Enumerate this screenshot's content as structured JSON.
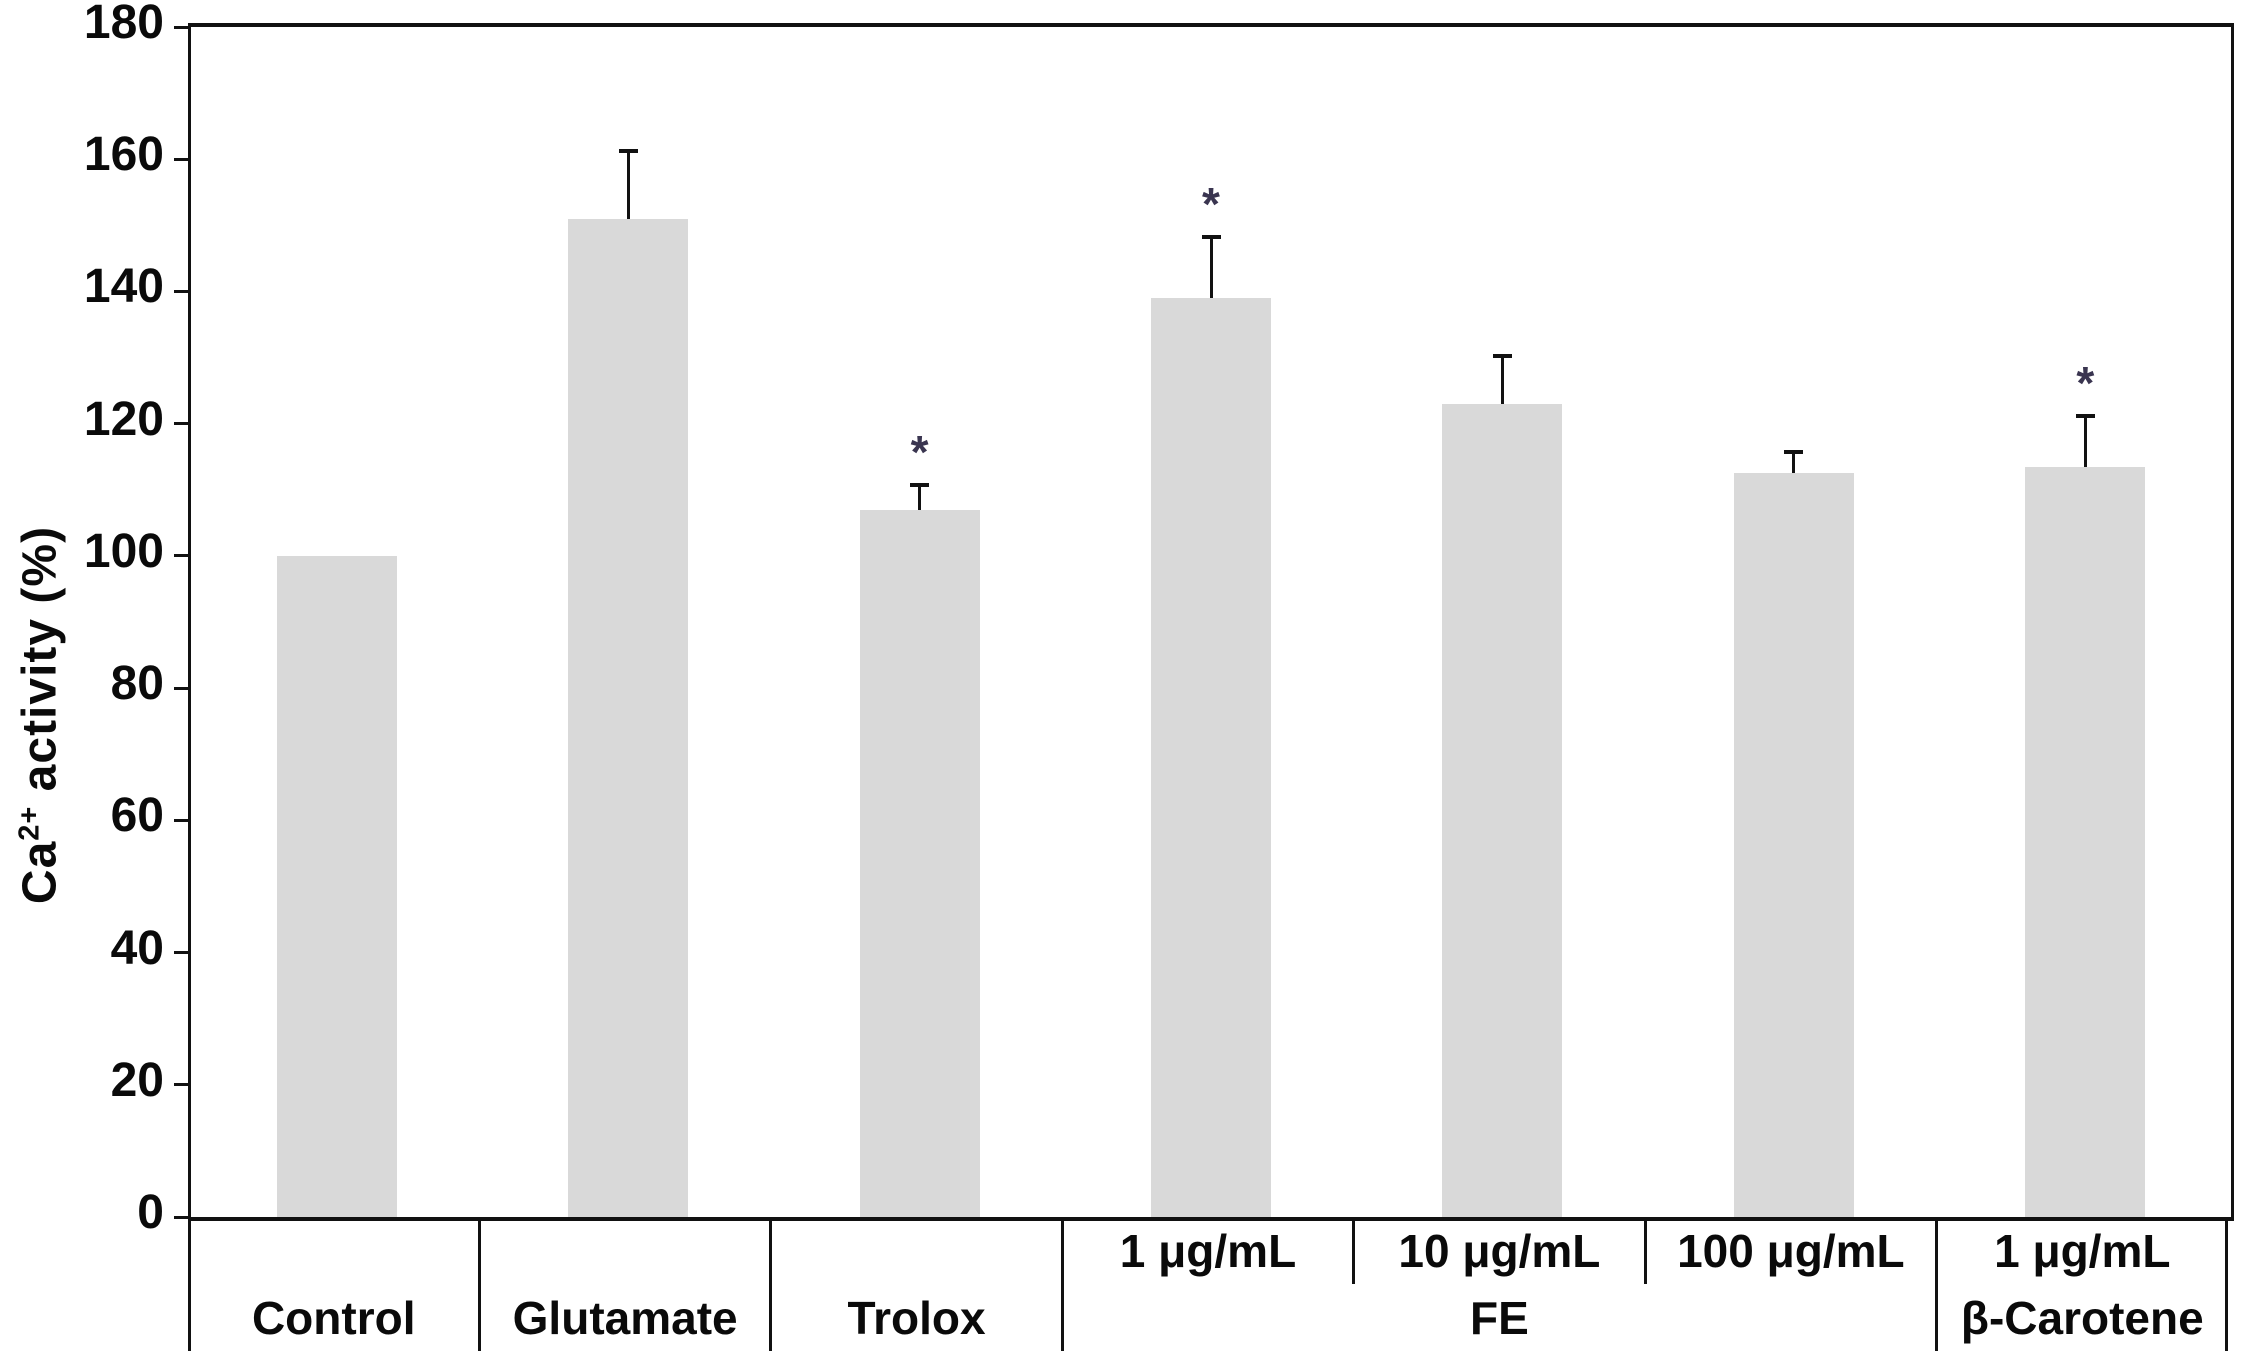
{
  "figure": {
    "ylabel_prefix": "Ca",
    "ylabel_sup": "2+",
    "ylabel_suffix": " activity (%)"
  },
  "chart_data": {
    "type": "bar",
    "title": "",
    "xlabel": "",
    "ylabel": "Ca2+ activity (%)",
    "ylim": [
      0,
      180
    ],
    "ytick_step": 20,
    "ytick_labels": [
      "0",
      "20",
      "40",
      "60",
      "80",
      "100",
      "120",
      "140",
      "160",
      "180"
    ],
    "grid": false,
    "legend": false,
    "bar_color": "#d9d9d9",
    "axis_color": "#111111",
    "error_bar_color": "#111111",
    "significance_marker": "*",
    "significance_color": "#3a3550",
    "categories": [
      "Control",
      "Glutamate",
      "Trolox",
      "FE 1 μg/mL",
      "FE 10 μg/mL",
      "FE 100 μg/mL",
      "β-Carotene 1 μg/mL"
    ],
    "values": [
      100,
      151,
      107,
      139,
      123,
      112.5,
      113.5
    ],
    "errors_plus": [
      0,
      10.5,
      4,
      9.5,
      7.5,
      3.5,
      8
    ],
    "significant": [
      false,
      false,
      true,
      true,
      false,
      false,
      true
    ],
    "x_axis_groups": [
      {
        "label": "Control",
        "dose_labels": [
          ""
        ]
      },
      {
        "label": "Glutamate",
        "dose_labels": [
          ""
        ]
      },
      {
        "label": "Trolox",
        "dose_labels": [
          ""
        ]
      },
      {
        "label": "FE",
        "dose_labels": [
          "1 μg/mL",
          "10 μg/mL",
          "100 μg/mL"
        ]
      },
      {
        "label": "β-Carotene",
        "dose_labels": [
          "1 μg/mL"
        ]
      }
    ]
  }
}
